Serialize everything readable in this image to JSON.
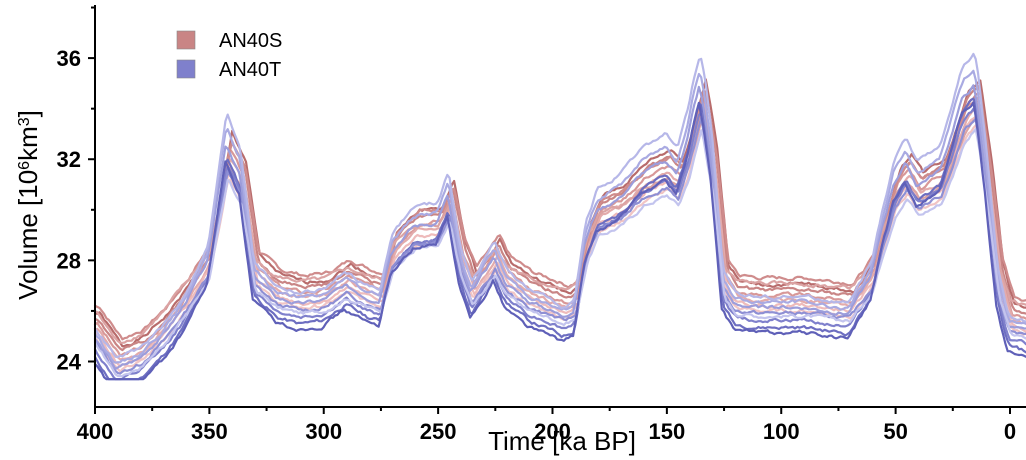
{
  "chart_data": {
    "type": "line",
    "title": "",
    "xlabel": "Time [ka BP]",
    "ylabel_main": "Volume [10",
    "ylabel_sup1": "6",
    "ylabel_mid": "km",
    "ylabel_sup2": "3",
    "ylabel_end": "]",
    "xlim": [
      400,
      -7
    ],
    "ylim": [
      22.2,
      38.1
    ],
    "x_ticks": [
      400,
      350,
      300,
      250,
      200,
      150,
      100,
      50,
      0
    ],
    "x_tick_labels": [
      "400",
      "350",
      "300",
      "250",
      "200",
      "150",
      "100",
      "50",
      "0"
    ],
    "y_ticks": [
      24,
      28,
      32,
      36
    ],
    "y_tick_labels": [
      "24",
      "28",
      "32",
      "36"
    ],
    "legend": {
      "placement": "top-left",
      "entries": [
        {
          "label": "AN40S",
          "color": "#c98585"
        },
        {
          "label": "AN40T",
          "color": "#7f80cc"
        }
      ]
    },
    "ensemble_template": {
      "x": [
        400,
        390,
        380,
        370,
        360,
        350,
        342,
        336,
        330,
        320,
        310,
        300,
        290,
        280,
        275,
        270,
        260,
        250,
        245,
        240,
        235,
        230,
        225,
        220,
        210,
        200,
        195,
        190,
        185,
        180,
        170,
        160,
        150,
        145,
        140,
        135,
        130,
        125,
        120,
        110,
        100,
        90,
        80,
        70,
        60,
        55,
        50,
        45,
        40,
        30,
        25,
        20,
        15,
        10,
        5,
        0,
        -7
      ],
      "base": [
        25.6,
        24.3,
        24.7,
        25.6,
        26.8,
        28.2,
        32.0,
        31.0,
        27.7,
        27.0,
        26.8,
        26.9,
        27.4,
        27.0,
        26.9,
        28.5,
        29.3,
        29.4,
        30.3,
        28.2,
        27.1,
        27.7,
        28.3,
        27.5,
        26.9,
        26.6,
        26.4,
        26.6,
        28.8,
        29.8,
        30.2,
        31.0,
        31.4,
        31.0,
        32.2,
        34.0,
        31.5,
        27.4,
        26.8,
        26.7,
        26.7,
        26.7,
        26.6,
        26.5,
        27.7,
        29.3,
        30.7,
        31.3,
        30.6,
        31.1,
        32.2,
        33.5,
        34.0,
        31.0,
        27.5,
        26.0,
        25.8
      ]
    },
    "series": [
      {
        "group": "AN40S",
        "color": "#b86c6c",
        "interglacial_offset": 1.2,
        "glacial_offset": 0.3,
        "phase_shift": 2.0,
        "noise_seed": 1
      },
      {
        "group": "AN40S",
        "color": "#c98585",
        "interglacial_offset": 0.9,
        "glacial_offset": 0.1,
        "phase_shift": 1.5,
        "noise_seed": 2
      },
      {
        "group": "AN40S",
        "color": "#d89898",
        "interglacial_offset": 0.5,
        "glacial_offset": -0.1,
        "phase_shift": 1.0,
        "noise_seed": 3
      },
      {
        "group": "AN40S",
        "color": "#e3abab",
        "interglacial_offset": 0.2,
        "glacial_offset": -0.3,
        "phase_shift": 1.2,
        "noise_seed": 4
      },
      {
        "group": "AN40S",
        "color": "#eebbbb",
        "interglacial_offset": -0.2,
        "glacial_offset": -0.5,
        "phase_shift": 0.8,
        "noise_seed": 5
      },
      {
        "group": "AN40S",
        "color": "#f1c4c4",
        "interglacial_offset": -0.6,
        "glacial_offset": -0.7,
        "phase_shift": 0.5,
        "noise_seed": 6
      },
      {
        "group": "AN40S",
        "color": "#cf8c8c",
        "interglacial_offset": 0.7,
        "glacial_offset": 0.6,
        "phase_shift": 1.8,
        "noise_seed": 7
      },
      {
        "group": "AN40S",
        "color": "#dba3a3",
        "interglacial_offset": -0.4,
        "glacial_offset": 0.4,
        "phase_shift": 0.3,
        "noise_seed": 8
      },
      {
        "group": "AN40T",
        "color": "#6d6ec1",
        "interglacial_offset": 0.4,
        "glacial_offset": -1.4,
        "phase_shift": -0.5,
        "noise_seed": 11
      },
      {
        "group": "AN40T",
        "color": "#7f80cc",
        "interglacial_offset": 0.0,
        "glacial_offset": -1.1,
        "phase_shift": -0.3,
        "noise_seed": 12
      },
      {
        "group": "AN40T",
        "color": "#8e8fd4",
        "interglacial_offset": -0.4,
        "glacial_offset": -0.8,
        "phase_shift": 0.0,
        "noise_seed": 13
      },
      {
        "group": "AN40T",
        "color": "#9c9ddb",
        "interglacial_offset": 0.9,
        "glacial_offset": -0.6,
        "phase_shift": -0.8,
        "noise_seed": 14
      },
      {
        "group": "AN40T",
        "color": "#a9aae2",
        "interglacial_offset": 1.6,
        "glacial_offset": -0.4,
        "phase_shift": -0.6,
        "noise_seed": 15
      },
      {
        "group": "AN40T",
        "color": "#b6b7e8",
        "interglacial_offset": 2.2,
        "glacial_offset": -0.2,
        "phase_shift": -0.4,
        "noise_seed": 16
      },
      {
        "group": "AN40T",
        "color": "#c3c4ee",
        "interglacial_offset": -0.8,
        "glacial_offset": -0.9,
        "phase_shift": 0.2,
        "noise_seed": 17
      },
      {
        "group": "AN40T",
        "color": "#5f60b8",
        "interglacial_offset": 0.2,
        "glacial_offset": -1.6,
        "phase_shift": -1.0,
        "noise_seed": 18
      }
    ]
  }
}
